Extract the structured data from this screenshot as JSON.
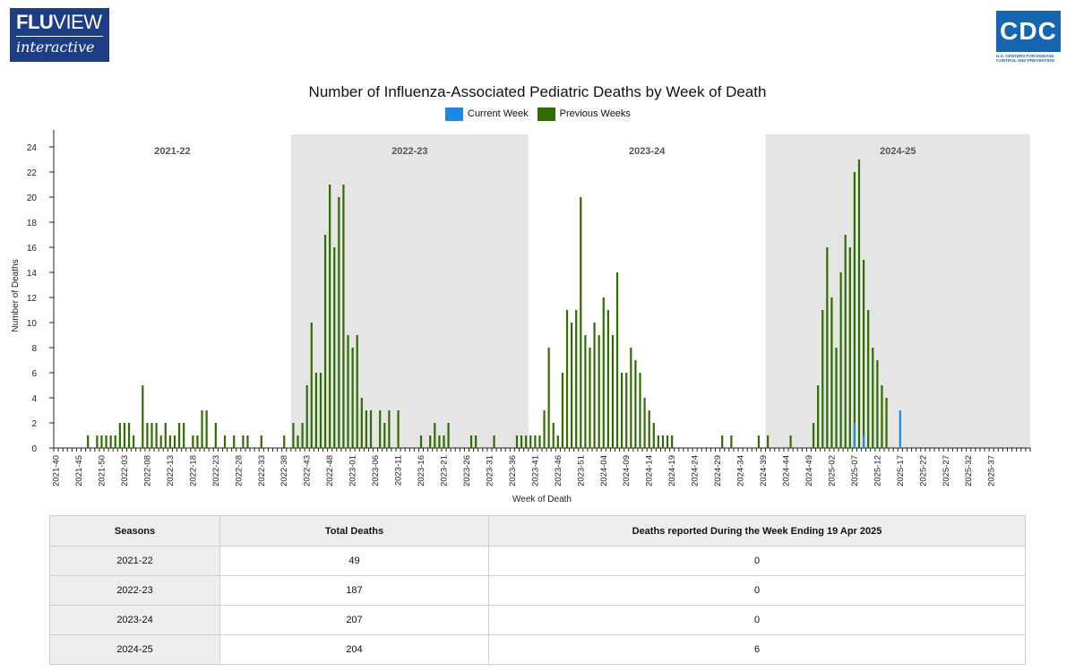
{
  "header": {
    "flu_logo_line1_bold": "FLU",
    "flu_logo_line1_rest": "VIEW",
    "flu_logo_line2": "interactive",
    "cdc_logo_text": "CDC",
    "cdc_logo_subtext": "U.S. CENTERS FOR DISEASE CONTROL AND PREVENTION"
  },
  "colors": {
    "current_week": "#1e88e5",
    "previous_weeks": "#2e6e00",
    "season_shade": "#e5e5e5"
  },
  "chart_data": {
    "type": "bar",
    "title": "Number of Influenza-Associated Pediatric Deaths by Week of Death",
    "xlabel": "Week of Death",
    "ylabel": "Number of Deaths",
    "ylim": [
      0,
      25
    ],
    "yticks": [
      0,
      2,
      4,
      6,
      8,
      10,
      12,
      14,
      16,
      18,
      20,
      22,
      24
    ],
    "legend": [
      {
        "name": "Current Week",
        "color": "#1e88e5"
      },
      {
        "name": "Previous Weeks",
        "color": "#2e6e00"
      }
    ],
    "legend_position": "top-center",
    "seasons": [
      {
        "label": "2021-22",
        "shaded": false
      },
      {
        "label": "2022-23",
        "shaded": true
      },
      {
        "label": "2023-24",
        "shaded": false
      },
      {
        "label": "2024-25",
        "shaded": true
      }
    ],
    "x_tick_labels": [
      "2021-40",
      "2021-45",
      "2021-50",
      "2022-03",
      "2022-08",
      "2022-13",
      "2022-18",
      "2022-23",
      "2022-28",
      "2022-33",
      "2022-38",
      "2022-43",
      "2022-48",
      "2023-01",
      "2023-06",
      "2023-11",
      "2023-16",
      "2023-21",
      "2023-26",
      "2023-31",
      "2023-36",
      "2023-41",
      "2023-46",
      "2023-51",
      "2024-04",
      "2024-09",
      "2024-14",
      "2024-19",
      "2024-24",
      "2024-29",
      "2024-34",
      "2024-39",
      "2024-44",
      "2024-49",
      "2025-02",
      "2025-07",
      "2025-12",
      "2025-17",
      "2025-22",
      "2025-27",
      "2025-32",
      "2025-37"
    ],
    "series": [
      {
        "name": "Previous Weeks",
        "values": [
          0,
          0,
          0,
          0,
          0,
          0,
          0,
          1,
          0,
          1,
          1,
          1,
          1,
          1,
          2,
          2,
          2,
          1,
          0,
          5,
          2,
          2,
          2,
          1,
          2,
          1,
          1,
          2,
          2,
          0,
          1,
          1,
          3,
          3,
          0,
          2,
          0,
          1,
          0,
          1,
          0,
          1,
          1,
          0,
          0,
          1,
          0,
          0,
          0,
          0,
          1,
          0,
          2,
          1,
          2,
          5,
          10,
          6,
          6,
          17,
          21,
          16,
          20,
          21,
          9,
          8,
          9,
          4,
          3,
          3,
          0,
          3,
          2,
          3,
          0,
          3,
          0,
          0,
          0,
          0,
          1,
          0,
          1,
          2,
          1,
          1,
          2,
          0,
          0,
          0,
          0,
          1,
          1,
          0,
          0,
          0,
          1,
          0,
          0,
          0,
          0,
          1,
          1,
          1,
          1,
          1,
          1,
          3,
          8,
          2,
          1,
          6,
          11,
          10,
          11,
          20,
          9,
          8,
          10,
          9,
          12,
          11,
          9,
          14,
          6,
          6,
          8,
          7,
          6,
          4,
          3,
          2,
          1,
          1,
          1,
          1,
          0,
          0,
          0,
          0,
          0,
          0,
          0,
          0,
          0,
          0,
          1,
          0,
          1,
          0,
          0,
          0,
          0,
          0,
          1,
          0,
          1,
          0,
          0,
          0,
          0,
          1,
          0,
          0,
          0,
          0,
          2,
          5,
          11,
          16,
          12,
          8,
          14,
          17,
          16,
          22,
          23,
          15,
          11,
          8,
          7,
          5,
          4,
          0,
          0,
          0,
          0,
          0,
          0,
          0,
          0,
          0,
          0,
          0,
          0,
          0,
          0,
          0,
          0,
          0,
          0,
          0,
          0,
          0,
          0,
          0,
          0,
          0,
          0,
          0,
          0,
          0,
          0,
          0
        ]
      },
      {
        "name": "Current Week",
        "values": [
          0,
          0,
          0,
          0,
          0,
          0,
          0,
          0,
          0,
          0,
          0,
          0,
          0,
          0,
          0,
          0,
          0,
          0,
          0,
          0,
          0,
          0,
          0,
          0,
          0,
          0,
          0,
          0,
          0,
          0,
          0,
          0,
          0,
          0,
          0,
          0,
          0,
          0,
          0,
          0,
          0,
          0,
          0,
          0,
          0,
          0,
          0,
          0,
          0,
          0,
          0,
          0,
          0,
          0,
          0,
          0,
          0,
          0,
          0,
          0,
          0,
          0,
          0,
          0,
          0,
          0,
          0,
          0,
          0,
          0,
          0,
          0,
          0,
          0,
          0,
          0,
          0,
          0,
          0,
          0,
          0,
          0,
          0,
          0,
          0,
          0,
          0,
          0,
          0,
          0,
          0,
          0,
          0,
          0,
          0,
          0,
          0,
          0,
          0,
          0,
          0,
          0,
          0,
          0,
          0,
          0,
          0,
          0,
          0,
          0,
          0,
          0,
          0,
          0,
          0,
          0,
          0,
          0,
          0,
          0,
          0,
          0,
          0,
          0,
          0,
          0,
          0,
          0,
          0,
          0,
          0,
          0,
          0,
          0,
          0,
          0,
          0,
          0,
          0,
          0,
          0,
          0,
          0,
          0,
          0,
          0,
          0,
          0,
          0,
          0,
          0,
          0,
          0,
          0,
          0,
          0,
          0,
          0,
          0,
          0,
          0,
          0,
          0,
          0,
          0,
          0,
          0,
          0,
          0,
          0,
          0,
          0,
          0,
          0,
          0,
          2,
          0,
          1,
          0,
          0,
          0,
          0,
          0,
          0,
          0,
          3,
          0,
          0,
          0,
          0,
          0,
          0,
          0,
          0,
          0,
          0,
          0,
          0,
          0,
          0,
          0,
          0,
          0,
          0,
          0,
          0,
          0,
          0,
          0,
          0,
          0,
          0,
          0,
          0
        ]
      }
    ]
  },
  "table": {
    "headers": [
      "Seasons",
      "Total Deaths",
      "Deaths reported During the Week Ending 19 Apr 2025"
    ],
    "rows": [
      {
        "season": "2021-22",
        "total": "49",
        "week": "0"
      },
      {
        "season": "2022-23",
        "total": "187",
        "week": "0"
      },
      {
        "season": "2023-24",
        "total": "207",
        "week": "0"
      },
      {
        "season": "2024-25",
        "total": "204",
        "week": "6"
      }
    ]
  }
}
